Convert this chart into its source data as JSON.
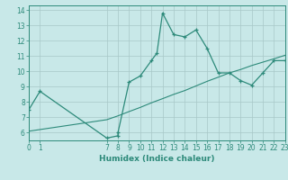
{
  "xlabel": "Humidex (Indice chaleur)",
  "line1_x": [
    0,
    1,
    7,
    8,
    8,
    9,
    10,
    11,
    11.5,
    12,
    13,
    14,
    15,
    16,
    17,
    18,
    19,
    20,
    21,
    22,
    23
  ],
  "line1_y": [
    7.5,
    8.7,
    5.65,
    5.8,
    6.0,
    9.3,
    9.7,
    10.7,
    11.2,
    13.8,
    12.4,
    12.25,
    12.7,
    11.5,
    9.9,
    9.9,
    9.4,
    9.1,
    9.9,
    10.7,
    10.7
  ],
  "line2_x": [
    0,
    7,
    8,
    9,
    10,
    11,
    12,
    13,
    14,
    15,
    16,
    17,
    18,
    19,
    20,
    21,
    22,
    23
  ],
  "line2_y": [
    6.1,
    6.85,
    7.1,
    7.38,
    7.65,
    7.95,
    8.22,
    8.5,
    8.75,
    9.05,
    9.35,
    9.62,
    9.9,
    10.12,
    10.38,
    10.6,
    10.82,
    11.05
  ],
  "line_color": "#2d8a7a",
  "bg_color": "#c8e8e8",
  "grid_color_major": "#a8c8c8",
  "grid_color_minor": "#b8d8d8",
  "xlim": [
    0,
    23
  ],
  "ylim": [
    5.5,
    14.3
  ],
  "xticks": [
    0,
    1,
    7,
    8,
    9,
    10,
    11,
    12,
    13,
    14,
    15,
    16,
    17,
    18,
    19,
    20,
    21,
    22,
    23
  ],
  "yticks": [
    6,
    7,
    8,
    9,
    10,
    11,
    12,
    13,
    14
  ],
  "tick_fontsize": 5.5,
  "xlabel_fontsize": 6.5
}
